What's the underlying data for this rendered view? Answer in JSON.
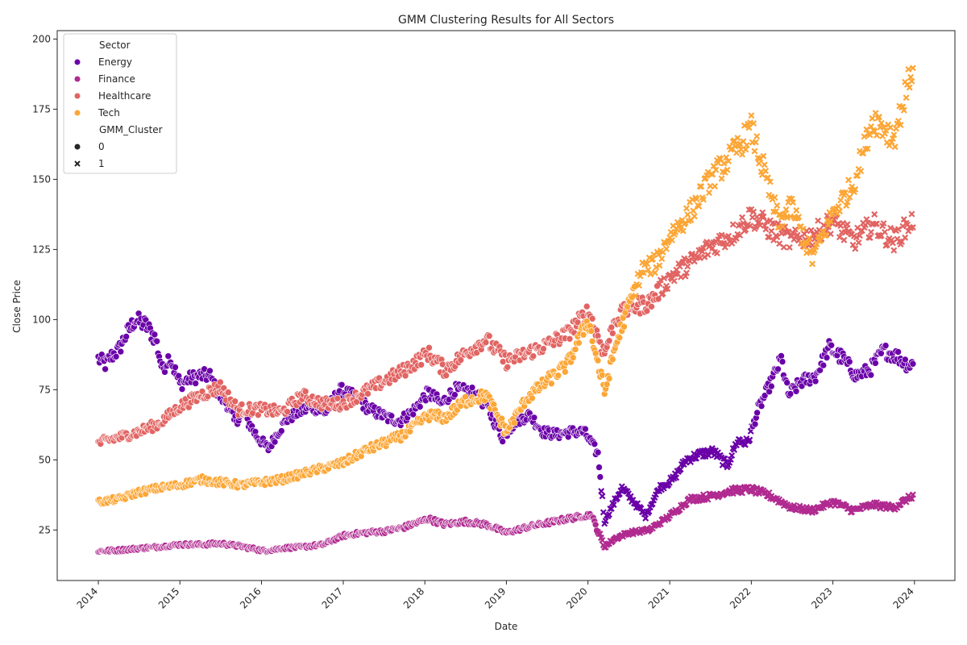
{
  "chart_data": {
    "type": "scatter",
    "title": "GMM Clustering Results for All Sectors",
    "xlabel": "Date",
    "ylabel": "Close Price",
    "x_type": "date",
    "xlim": [
      "2013-07-01",
      "2024-06-30"
    ],
    "ylim": [
      7,
      203
    ],
    "x_ticks": [
      "2014",
      "2015",
      "2016",
      "2017",
      "2018",
      "2019",
      "2020",
      "2021",
      "2022",
      "2023",
      "2024"
    ],
    "y_ticks": [
      25,
      50,
      75,
      100,
      125,
      150,
      175,
      200
    ],
    "grid": false,
    "legend_placement": "top-left",
    "legend": {
      "hue_title": "Sector",
      "style_title": "GMM_Cluster",
      "markers": [
        {
          "cluster": "0",
          "marker": "circle"
        },
        {
          "cluster": "1",
          "marker": "x"
        }
      ]
    },
    "series": [
      {
        "name": "Energy",
        "color": "#6a00a8",
        "points": [
          [
            "2014-01-01",
            86,
            0
          ],
          [
            "2014-02-01",
            84,
            0
          ],
          [
            "2014-03-01",
            87,
            0
          ],
          [
            "2014-04-01",
            89,
            0
          ],
          [
            "2014-05-01",
            94,
            0
          ],
          [
            "2014-06-15",
            100,
            0
          ],
          [
            "2014-08-01",
            98,
            0
          ],
          [
            "2014-09-15",
            93,
            0
          ],
          [
            "2014-10-15",
            82,
            0
          ],
          [
            "2014-11-15",
            87,
            0
          ],
          [
            "2015-01-01",
            77,
            0
          ],
          [
            "2015-02-15",
            79,
            0
          ],
          [
            "2015-04-01",
            80,
            0
          ],
          [
            "2015-05-15",
            80,
            0
          ],
          [
            "2015-06-15",
            74,
            0
          ],
          [
            "2015-08-01",
            70,
            0
          ],
          [
            "2015-09-01",
            64,
            0
          ],
          [
            "2015-10-15",
            66,
            0
          ],
          [
            "2015-12-15",
            58,
            0
          ],
          [
            "2016-02-01",
            54,
            0
          ],
          [
            "2016-03-15",
            60,
            0
          ],
          [
            "2016-05-01",
            65,
            0
          ],
          [
            "2016-06-15",
            67,
            0
          ],
          [
            "2016-08-15",
            69,
            0
          ],
          [
            "2016-10-15",
            67,
            0
          ],
          [
            "2016-12-15",
            75,
            0
          ],
          [
            "2017-03-01",
            72,
            0
          ],
          [
            "2017-05-01",
            68,
            0
          ],
          [
            "2017-07-15",
            65,
            0
          ],
          [
            "2017-09-15",
            64,
            0
          ],
          [
            "2017-11-15",
            68,
            0
          ],
          [
            "2018-01-15",
            74,
            0
          ],
          [
            "2018-03-15",
            70,
            0
          ],
          [
            "2018-05-15",
            75,
            0
          ],
          [
            "2018-08-01",
            74,
            0
          ],
          [
            "2018-10-01",
            70,
            0
          ],
          [
            "2018-12-15",
            58,
            0
          ],
          [
            "2019-02-15",
            64,
            0
          ],
          [
            "2019-04-15",
            66,
            0
          ],
          [
            "2019-06-15",
            60,
            0
          ],
          [
            "2019-08-15",
            59,
            0
          ],
          [
            "2019-10-15",
            60,
            0
          ],
          [
            "2019-12-15",
            60,
            0
          ],
          [
            "2020-02-15",
            52,
            0
          ],
          [
            "2020-03-15",
            28,
            1
          ],
          [
            "2020-04-15",
            33,
            1
          ],
          [
            "2020-06-01",
            40,
            1
          ],
          [
            "2020-07-15",
            36,
            1
          ],
          [
            "2020-09-15",
            30,
            1
          ],
          [
            "2020-11-15",
            40,
            1
          ],
          [
            "2021-01-15",
            43,
            1
          ],
          [
            "2021-03-15",
            50,
            1
          ],
          [
            "2021-05-15",
            52,
            1
          ],
          [
            "2021-07-15",
            53,
            1
          ],
          [
            "2021-09-15",
            48,
            1
          ],
          [
            "2021-11-01",
            57,
            1
          ],
          [
            "2021-12-15",
            56,
            1
          ],
          [
            "2022-02-01",
            68,
            0
          ],
          [
            "2022-04-01",
            78,
            0
          ],
          [
            "2022-05-15",
            86,
            0
          ],
          [
            "2022-06-15",
            73,
            0
          ],
          [
            "2022-08-15",
            78,
            0
          ],
          [
            "2022-10-15",
            80,
            0
          ],
          [
            "2022-12-15",
            90,
            0
          ],
          [
            "2023-02-15",
            86,
            0
          ],
          [
            "2023-04-15",
            80,
            0
          ],
          [
            "2023-06-15",
            82,
            0
          ],
          [
            "2023-08-15",
            89,
            0
          ],
          [
            "2023-10-15",
            87,
            0
          ],
          [
            "2023-12-01",
            84,
            0
          ],
          [
            "2023-12-30",
            84,
            0
          ]
        ]
      },
      {
        "name": "Finance",
        "color": "#b02a90",
        "points": [
          [
            "2014-01-01",
            17.5,
            0
          ],
          [
            "2014-04-01",
            17.8,
            0
          ],
          [
            "2014-07-01",
            18.5,
            0
          ],
          [
            "2014-10-01",
            19,
            0
          ],
          [
            "2015-01-01",
            19.8,
            0
          ],
          [
            "2015-04-01",
            19.8,
            0
          ],
          [
            "2015-07-01",
            20.2,
            0
          ],
          [
            "2015-10-01",
            19.2,
            0
          ],
          [
            "2016-01-15",
            17.5,
            0
          ],
          [
            "2016-04-01",
            18.5,
            0
          ],
          [
            "2016-07-01",
            19,
            0
          ],
          [
            "2016-10-01",
            19.8,
            0
          ],
          [
            "2017-01-01",
            23,
            0
          ],
          [
            "2017-04-01",
            24,
            0
          ],
          [
            "2017-07-01",
            24.5,
            0
          ],
          [
            "2017-10-01",
            26,
            0
          ],
          [
            "2018-01-15",
            29,
            0
          ],
          [
            "2018-04-01",
            27,
            0
          ],
          [
            "2018-07-01",
            28,
            0
          ],
          [
            "2018-10-01",
            27,
            0
          ],
          [
            "2019-01-01",
            24,
            0
          ],
          [
            "2019-04-01",
            26,
            0
          ],
          [
            "2019-07-01",
            27.5,
            0
          ],
          [
            "2019-10-01",
            29,
            0
          ],
          [
            "2020-01-15",
            30.5,
            0
          ],
          [
            "2020-03-15",
            19,
            1
          ],
          [
            "2020-05-01",
            22,
            1
          ],
          [
            "2020-07-01",
            24,
            1
          ],
          [
            "2020-10-01",
            25,
            1
          ],
          [
            "2021-01-01",
            30,
            1
          ],
          [
            "2021-04-01",
            36,
            1
          ],
          [
            "2021-07-01",
            37,
            1
          ],
          [
            "2021-10-01",
            39,
            1
          ],
          [
            "2022-01-01",
            39.5,
            1
          ],
          [
            "2022-04-01",
            37,
            1
          ],
          [
            "2022-07-01",
            33,
            1
          ],
          [
            "2022-10-01",
            32,
            1
          ],
          [
            "2023-01-01",
            35,
            1
          ],
          [
            "2023-04-01",
            32,
            1
          ],
          [
            "2023-07-01",
            34,
            1
          ],
          [
            "2023-10-01",
            33,
            1
          ],
          [
            "2023-12-30",
            37.5,
            1
          ]
        ]
      },
      {
        "name": "Healthcare",
        "color": "#e16462",
        "points": [
          [
            "2014-01-01",
            56,
            0
          ],
          [
            "2014-04-01",
            58,
            0
          ],
          [
            "2014-07-01",
            60,
            0
          ],
          [
            "2014-10-01",
            63,
            0
          ],
          [
            "2015-01-01",
            69,
            0
          ],
          [
            "2015-04-01",
            73,
            0
          ],
          [
            "2015-07-01",
            76,
            0
          ],
          [
            "2015-09-15",
            68,
            0
          ],
          [
            "2016-01-01",
            68,
            0
          ],
          [
            "2016-04-01",
            67,
            0
          ],
          [
            "2016-07-01",
            73,
            0
          ],
          [
            "2016-10-01",
            70,
            0
          ],
          [
            "2017-01-01",
            70,
            0
          ],
          [
            "2017-04-01",
            74,
            0
          ],
          [
            "2017-07-01",
            78,
            0
          ],
          [
            "2017-10-01",
            82,
            0
          ],
          [
            "2018-01-15",
            88,
            0
          ],
          [
            "2018-04-01",
            82,
            0
          ],
          [
            "2018-07-01",
            88,
            0
          ],
          [
            "2018-10-01",
            93,
            0
          ],
          [
            "2019-01-01",
            85,
            0
          ],
          [
            "2019-04-01",
            88,
            0
          ],
          [
            "2019-07-01",
            91,
            0
          ],
          [
            "2019-10-01",
            95,
            0
          ],
          [
            "2020-01-01",
            103,
            0
          ],
          [
            "2020-03-15",
            88,
            0
          ],
          [
            "2020-05-01",
            100,
            0
          ],
          [
            "2020-07-01",
            104,
            0
          ],
          [
            "2020-10-01",
            106,
            0
          ],
          [
            "2021-01-01",
            115,
            1
          ],
          [
            "2021-04-01",
            120,
            1
          ],
          [
            "2021-07-01",
            126,
            1
          ],
          [
            "2021-10-01",
            130,
            1
          ],
          [
            "2022-01-01",
            137,
            1
          ],
          [
            "2022-04-01",
            132,
            1
          ],
          [
            "2022-07-01",
            128,
            1
          ],
          [
            "2022-10-01",
            130,
            1
          ],
          [
            "2023-01-01",
            135,
            1
          ],
          [
            "2023-04-01",
            128,
            1
          ],
          [
            "2023-07-01",
            134,
            1
          ],
          [
            "2023-10-01",
            128,
            1
          ],
          [
            "2023-12-30",
            136,
            1
          ]
        ]
      },
      {
        "name": "Tech",
        "color": "#fca636",
        "points": [
          [
            "2014-01-01",
            35,
            0
          ],
          [
            "2014-04-01",
            36,
            0
          ],
          [
            "2014-07-01",
            38.5,
            0
          ],
          [
            "2014-10-01",
            40,
            0
          ],
          [
            "2015-01-01",
            41,
            0
          ],
          [
            "2015-04-01",
            43,
            0
          ],
          [
            "2015-07-01",
            42,
            0
          ],
          [
            "2015-10-01",
            41,
            0
          ],
          [
            "2016-01-01",
            42,
            0
          ],
          [
            "2016-04-01",
            43,
            0
          ],
          [
            "2016-07-01",
            45,
            0
          ],
          [
            "2016-10-01",
            47,
            0
          ],
          [
            "2017-01-01",
            49,
            0
          ],
          [
            "2017-04-01",
            53,
            0
          ],
          [
            "2017-07-01",
            56,
            0
          ],
          [
            "2017-10-01",
            59,
            0
          ],
          [
            "2018-01-15",
            66,
            0
          ],
          [
            "2018-04-01",
            65,
            0
          ],
          [
            "2018-07-01",
            71,
            0
          ],
          [
            "2018-10-01",
            73,
            0
          ],
          [
            "2019-01-01",
            60,
            0
          ],
          [
            "2019-04-01",
            72,
            0
          ],
          [
            "2019-07-01",
            78,
            0
          ],
          [
            "2019-10-01",
            84,
            0
          ],
          [
            "2020-01-01",
            100,
            0
          ],
          [
            "2020-03-15",
            74,
            0
          ],
          [
            "2020-05-01",
            90,
            0
          ],
          [
            "2020-07-01",
            105,
            0
          ],
          [
            "2020-09-01",
            118,
            1
          ],
          [
            "2020-11-01",
            120,
            1
          ],
          [
            "2021-01-01",
            130,
            1
          ],
          [
            "2021-04-01",
            138,
            1
          ],
          [
            "2021-07-01",
            150,
            1
          ],
          [
            "2021-10-01",
            158,
            1
          ],
          [
            "2022-01-01",
            168,
            1
          ],
          [
            "2022-03-01",
            152,
            1
          ],
          [
            "2022-05-01",
            135,
            1
          ],
          [
            "2022-07-01",
            140,
            1
          ],
          [
            "2022-10-01",
            122,
            1
          ],
          [
            "2023-01-01",
            138,
            1
          ],
          [
            "2023-04-01",
            148,
            1
          ],
          [
            "2023-07-01",
            172,
            1
          ],
          [
            "2023-10-01",
            165,
            1
          ],
          [
            "2023-12-30",
            192,
            1
          ]
        ]
      }
    ]
  }
}
